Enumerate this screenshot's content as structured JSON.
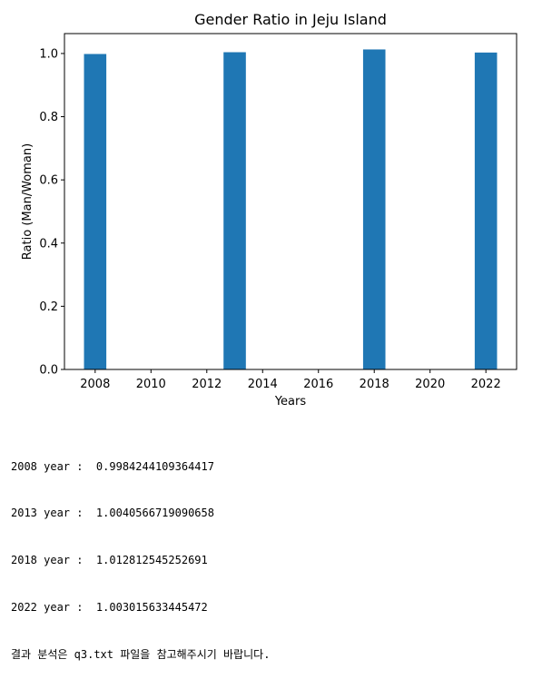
{
  "chart_data": {
    "type": "bar",
    "title": "Gender Ratio in Jeju Island",
    "xlabel": "Years",
    "ylabel": "Ratio (Man/Woman)",
    "x": [
      2008,
      2013,
      2018,
      2022
    ],
    "values": [
      0.9984244109364417,
      1.0040566719090658,
      1.012812545252691,
      1.003015633445472
    ],
    "xlim": [
      2006.9,
      2023.1
    ],
    "ylim": [
      0,
      1.063
    ],
    "xticks": [
      "2008",
      "2010",
      "2012",
      "2014",
      "2016",
      "2018",
      "2020",
      "2022"
    ],
    "yticks": [
      "0.0",
      "0.2",
      "0.4",
      "0.6",
      "0.8",
      "1.0"
    ],
    "bar_color": "#1f77b4",
    "grid": false,
    "legend": "none"
  },
  "console": {
    "lines": [
      "2008 year :  0.9984244109364417",
      "2013 year :  1.0040566719090658",
      "2018 year :  1.012812545252691",
      "2022 year :  1.003015633445472",
      "결과 분석은 q3.txt 파일을 참고해주시기 바랍니다."
    ]
  }
}
